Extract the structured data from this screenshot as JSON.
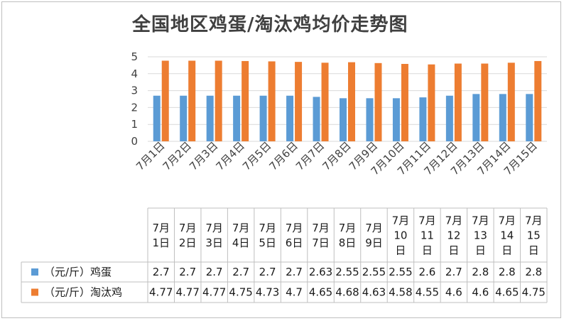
{
  "chart_data": {
    "type": "bar",
    "title": "全国地区鸡蛋/淘汰鸡均价走势图",
    "categories": [
      "7月1日",
      "7月2日",
      "7月3日",
      "7月4日",
      "7月5日",
      "7月6日",
      "7月7日",
      "7月8日",
      "7月9日",
      "7月10日",
      "7月11日",
      "7月12日",
      "7月13日",
      "7月14日",
      "7月15日"
    ],
    "table_headers": [
      [
        "7月",
        "1日"
      ],
      [
        "7月",
        "2日"
      ],
      [
        "7月",
        "3日"
      ],
      [
        "7月",
        "4日"
      ],
      [
        "7月",
        "5日"
      ],
      [
        "7月",
        "6日"
      ],
      [
        "7月",
        "7日"
      ],
      [
        "7月",
        "8日"
      ],
      [
        "7月",
        "9日"
      ],
      [
        "7月",
        "10",
        "日"
      ],
      [
        "7月",
        "11",
        "日"
      ],
      [
        "7月",
        "12",
        "日"
      ],
      [
        "7月",
        "13",
        "日"
      ],
      [
        "7月",
        "14",
        "日"
      ],
      [
        "7月",
        "15",
        "日"
      ]
    ],
    "series": [
      {
        "name": "（元/斤）鸡蛋",
        "color": "#5b9bd5",
        "values": [
          2.7,
          2.7,
          2.7,
          2.7,
          2.7,
          2.7,
          2.63,
          2.55,
          2.55,
          2.55,
          2.6,
          2.7,
          2.8,
          2.8,
          2.8
        ]
      },
      {
        "name": "（元/斤）淘汰鸡",
        "color": "#ed7d31",
        "values": [
          4.77,
          4.77,
          4.77,
          4.75,
          4.73,
          4.7,
          4.65,
          4.68,
          4.63,
          4.58,
          4.55,
          4.6,
          4.6,
          4.65,
          4.75
        ]
      }
    ],
    "ylim": [
      0,
      5
    ],
    "yticks": [
      "0",
      "1",
      "2",
      "3",
      "4",
      "5"
    ],
    "grid": true,
    "legend": "data-table"
  }
}
